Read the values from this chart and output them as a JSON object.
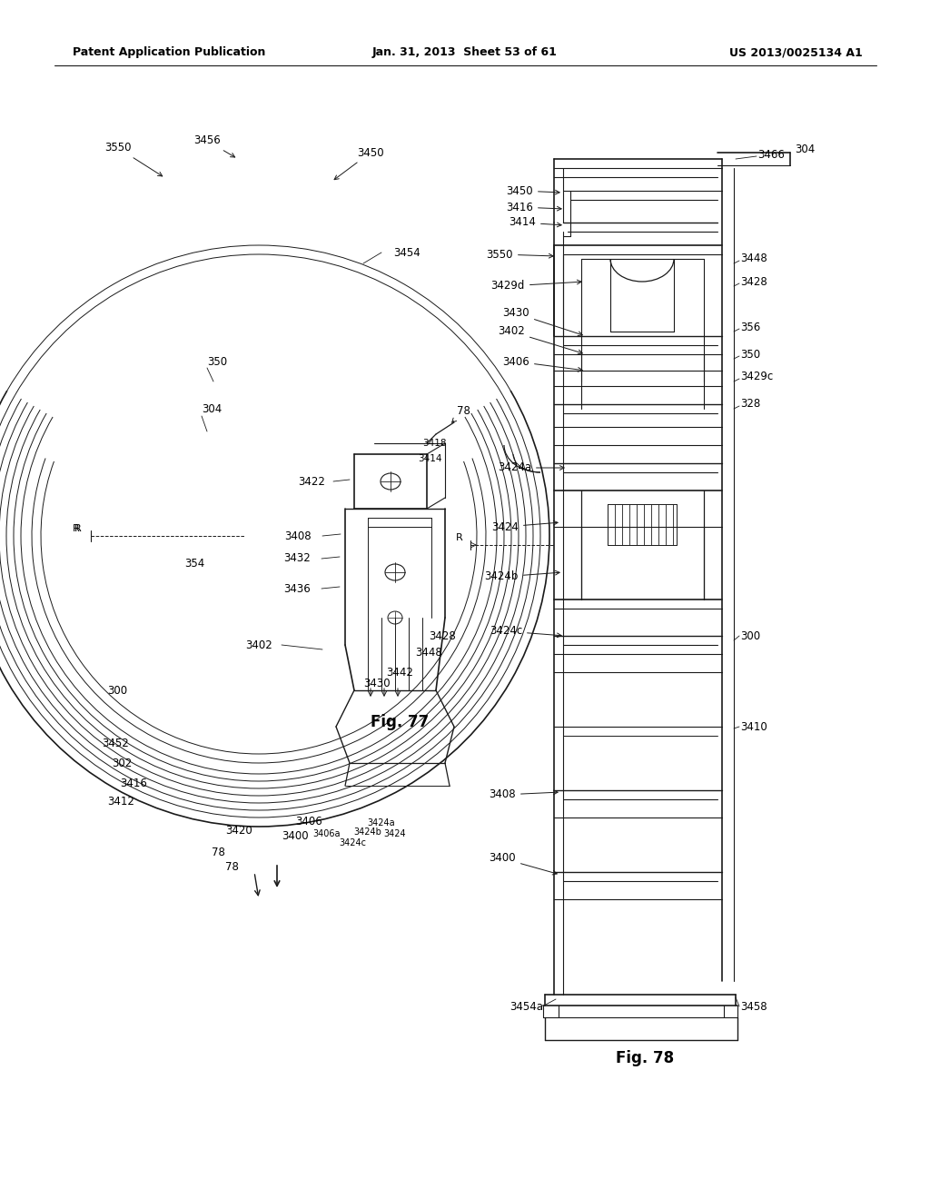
{
  "title_left": "Patent Application Publication",
  "title_center": "Jan. 31, 2013  Sheet 53 of 61",
  "title_right": "US 2013/0025134 A1",
  "fig77_label": "Fig. 77",
  "fig78_label": "Fig. 78",
  "background_color": "#ffffff",
  "line_color": "#1a1a1a",
  "text_color": "#000000",
  "header_fontsize": 9,
  "label_fontsize": 8.5
}
